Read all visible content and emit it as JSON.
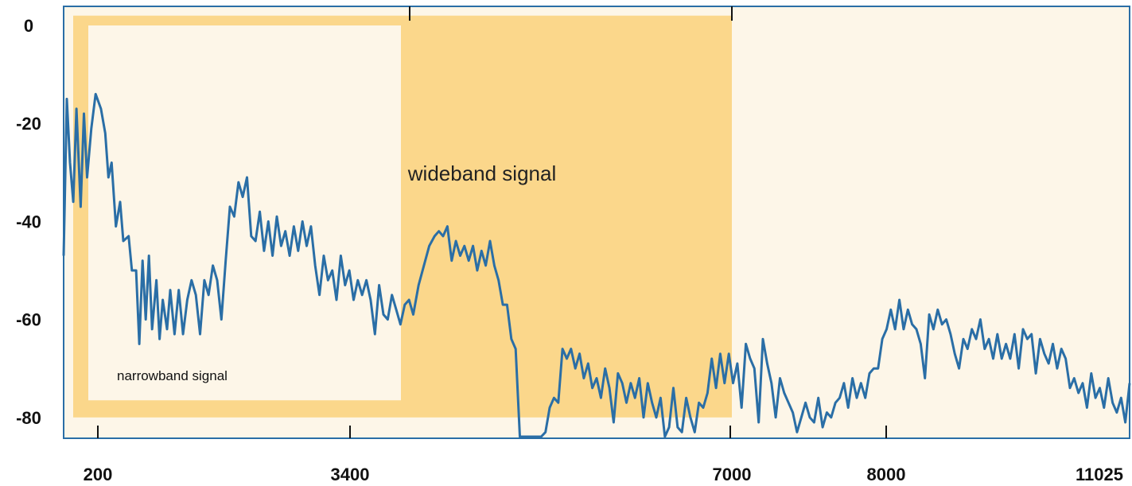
{
  "chart_data": {
    "type": "line",
    "title": "",
    "xlabel": "",
    "ylabel": "",
    "ylim": [
      -84,
      2
    ],
    "x_ticks": [
      "200",
      "3400",
      "7000",
      "8000",
      "11025"
    ],
    "y_ticks": [
      "0",
      "-20",
      "-40",
      "-60",
      "-80"
    ],
    "y_tick_values": [
      0,
      -20,
      -40,
      -60,
      -80
    ],
    "grid": false,
    "legend": "none",
    "colors": {
      "line": "#2a6ea6",
      "plot_background": "#fdf6e8",
      "band_fill": "#fbd78b",
      "axis": "#2a6ea6"
    },
    "bands": [
      {
        "name": "wideband",
        "label": "wideband signal",
        "x_range": [
          "200",
          "7000"
        ],
        "y_range": [
          -80,
          2
        ]
      },
      {
        "name": "narrowband",
        "label": "narrowband signal",
        "x_range": [
          "200",
          "3400"
        ],
        "y_range": [
          -76.5,
          0
        ]
      }
    ],
    "series": [
      {
        "name": "",
        "x_unit": "position along frequency axis, 0 = left edge, 1 = right edge",
        "points": [
          [
            0.0,
            -47
          ],
          [
            0.003,
            -15
          ],
          [
            0.006,
            -28
          ],
          [
            0.009,
            -36
          ],
          [
            0.012,
            -17
          ],
          [
            0.016,
            -37
          ],
          [
            0.019,
            -18
          ],
          [
            0.022,
            -31
          ],
          [
            0.026,
            -21
          ],
          [
            0.03,
            -14
          ],
          [
            0.035,
            -17
          ],
          [
            0.039,
            -22
          ],
          [
            0.042,
            -31
          ],
          [
            0.045,
            -28
          ],
          [
            0.049,
            -41
          ],
          [
            0.053,
            -36
          ],
          [
            0.056,
            -44
          ],
          [
            0.061,
            -43
          ],
          [
            0.064,
            -50
          ],
          [
            0.068,
            -50
          ],
          [
            0.071,
            -65
          ],
          [
            0.074,
            -48
          ],
          [
            0.077,
            -60
          ],
          [
            0.08,
            -47
          ],
          [
            0.083,
            -62
          ],
          [
            0.087,
            -52
          ],
          [
            0.09,
            -64
          ],
          [
            0.093,
            -56
          ],
          [
            0.097,
            -62
          ],
          [
            0.1,
            -54
          ],
          [
            0.104,
            -63
          ],
          [
            0.108,
            -54
          ],
          [
            0.112,
            -63
          ],
          [
            0.116,
            -56
          ],
          [
            0.12,
            -52
          ],
          [
            0.124,
            -55
          ],
          [
            0.128,
            -63
          ],
          [
            0.132,
            -52
          ],
          [
            0.136,
            -55
          ],
          [
            0.14,
            -49
          ],
          [
            0.144,
            -52
          ],
          [
            0.148,
            -60
          ],
          [
            0.152,
            -48
          ],
          [
            0.156,
            -37
          ],
          [
            0.16,
            -39
          ],
          [
            0.164,
            -32
          ],
          [
            0.168,
            -35
          ],
          [
            0.172,
            -31
          ],
          [
            0.176,
            -43
          ],
          [
            0.18,
            -44
          ],
          [
            0.184,
            -38
          ],
          [
            0.188,
            -46
          ],
          [
            0.192,
            -40
          ],
          [
            0.196,
            -47
          ],
          [
            0.2,
            -39
          ],
          [
            0.204,
            -45
          ],
          [
            0.208,
            -42
          ],
          [
            0.212,
            -47
          ],
          [
            0.216,
            -41
          ],
          [
            0.22,
            -46
          ],
          [
            0.224,
            -40
          ],
          [
            0.228,
            -45
          ],
          [
            0.232,
            -41
          ],
          [
            0.236,
            -49
          ],
          [
            0.24,
            -55
          ],
          [
            0.244,
            -47
          ],
          [
            0.248,
            -52
          ],
          [
            0.252,
            -50
          ],
          [
            0.256,
            -56
          ],
          [
            0.26,
            -47
          ],
          [
            0.264,
            -53
          ],
          [
            0.268,
            -50
          ],
          [
            0.272,
            -56
          ],
          [
            0.276,
            -52
          ],
          [
            0.28,
            -55
          ],
          [
            0.284,
            -52
          ],
          [
            0.288,
            -56
          ],
          [
            0.292,
            -63
          ],
          [
            0.296,
            -53
          ],
          [
            0.3,
            -59
          ],
          [
            0.304,
            -60
          ],
          [
            0.308,
            -55
          ],
          [
            0.312,
            -58
          ],
          [
            0.316,
            -61
          ],
          [
            0.32,
            -57
          ],
          [
            0.324,
            -56
          ],
          [
            0.328,
            -59
          ],
          [
            0.333,
            -53
          ],
          [
            0.338,
            -49
          ],
          [
            0.343,
            -45
          ],
          [
            0.348,
            -43
          ],
          [
            0.352,
            -42
          ],
          [
            0.356,
            -43
          ],
          [
            0.36,
            -41
          ],
          [
            0.364,
            -48
          ],
          [
            0.368,
            -44
          ],
          [
            0.372,
            -47
          ],
          [
            0.376,
            -45
          ],
          [
            0.38,
            -48
          ],
          [
            0.384,
            -45
          ],
          [
            0.388,
            -50
          ],
          [
            0.392,
            -46
          ],
          [
            0.396,
            -49
          ],
          [
            0.4,
            -44
          ],
          [
            0.404,
            -49
          ],
          [
            0.408,
            -52
          ],
          [
            0.412,
            -57
          ],
          [
            0.416,
            -57
          ],
          [
            0.42,
            -64
          ],
          [
            0.424,
            -66
          ],
          [
            0.428,
            -85
          ],
          [
            0.432,
            -85
          ],
          [
            0.436,
            -84
          ],
          [
            0.44,
            -84
          ],
          [
            0.444,
            -84
          ],
          [
            0.448,
            -84
          ],
          [
            0.452,
            -83
          ],
          [
            0.456,
            -78
          ],
          [
            0.46,
            -76
          ],
          [
            0.464,
            -77
          ],
          [
            0.468,
            -66
          ],
          [
            0.472,
            -68
          ],
          [
            0.476,
            -66
          ],
          [
            0.48,
            -70
          ],
          [
            0.484,
            -67
          ],
          [
            0.488,
            -72
          ],
          [
            0.492,
            -69
          ],
          [
            0.496,
            -74
          ],
          [
            0.5,
            -72
          ],
          [
            0.504,
            -76
          ],
          [
            0.508,
            -70
          ],
          [
            0.512,
            -74
          ],
          [
            0.516,
            -81
          ],
          [
            0.52,
            -71
          ],
          [
            0.524,
            -73
          ],
          [
            0.528,
            -77
          ],
          [
            0.532,
            -73
          ],
          [
            0.536,
            -76
          ],
          [
            0.54,
            -72
          ],
          [
            0.544,
            -80
          ],
          [
            0.548,
            -73
          ],
          [
            0.552,
            -77
          ],
          [
            0.556,
            -80
          ],
          [
            0.56,
            -76
          ],
          [
            0.564,
            -84
          ],
          [
            0.568,
            -82
          ],
          [
            0.572,
            -74
          ],
          [
            0.576,
            -82
          ],
          [
            0.58,
            -83
          ],
          [
            0.584,
            -76
          ],
          [
            0.588,
            -80
          ],
          [
            0.592,
            -83
          ],
          [
            0.596,
            -77
          ],
          [
            0.6,
            -78
          ],
          [
            0.604,
            -75
          ],
          [
            0.608,
            -68
          ],
          [
            0.612,
            -74
          ],
          [
            0.616,
            -67
          ],
          [
            0.62,
            -73
          ],
          [
            0.624,
            -67
          ],
          [
            0.628,
            -73
          ],
          [
            0.632,
            -69
          ],
          [
            0.636,
            -78
          ],
          [
            0.64,
            -65
          ],
          [
            0.644,
            -68
          ],
          [
            0.648,
            -70
          ],
          [
            0.652,
            -81
          ],
          [
            0.656,
            -64
          ],
          [
            0.66,
            -69
          ],
          [
            0.664,
            -73
          ],
          [
            0.668,
            -80
          ],
          [
            0.672,
            -72
          ],
          [
            0.676,
            -75
          ],
          [
            0.68,
            -77
          ],
          [
            0.684,
            -79
          ],
          [
            0.688,
            -83
          ],
          [
            0.692,
            -80
          ],
          [
            0.696,
            -77
          ],
          [
            0.7,
            -80
          ],
          [
            0.704,
            -81
          ],
          [
            0.708,
            -76
          ],
          [
            0.712,
            -82
          ],
          [
            0.716,
            -79
          ],
          [
            0.72,
            -80
          ],
          [
            0.724,
            -77
          ],
          [
            0.728,
            -76
          ],
          [
            0.732,
            -73
          ],
          [
            0.736,
            -78
          ],
          [
            0.74,
            -72
          ],
          [
            0.744,
            -76
          ],
          [
            0.748,
            -73
          ],
          [
            0.752,
            -76
          ],
          [
            0.756,
            -71
          ],
          [
            0.76,
            -70
          ],
          [
            0.764,
            -70
          ],
          [
            0.768,
            -64
          ],
          [
            0.772,
            -62
          ],
          [
            0.776,
            -58
          ],
          [
            0.78,
            -62
          ],
          [
            0.784,
            -56
          ],
          [
            0.788,
            -62
          ],
          [
            0.792,
            -58
          ],
          [
            0.796,
            -61
          ],
          [
            0.8,
            -62
          ],
          [
            0.804,
            -65
          ],
          [
            0.808,
            -72
          ],
          [
            0.812,
            -59
          ],
          [
            0.816,
            -62
          ],
          [
            0.82,
            -58
          ],
          [
            0.824,
            -61
          ],
          [
            0.828,
            -60
          ],
          [
            0.832,
            -63
          ],
          [
            0.836,
            -67
          ],
          [
            0.84,
            -70
          ],
          [
            0.844,
            -64
          ],
          [
            0.848,
            -66
          ],
          [
            0.852,
            -62
          ],
          [
            0.856,
            -64
          ],
          [
            0.86,
            -60
          ],
          [
            0.864,
            -66
          ],
          [
            0.868,
            -64
          ],
          [
            0.872,
            -68
          ],
          [
            0.876,
            -63
          ],
          [
            0.88,
            -68
          ],
          [
            0.884,
            -65
          ],
          [
            0.888,
            -68
          ],
          [
            0.892,
            -63
          ],
          [
            0.896,
            -70
          ],
          [
            0.9,
            -62
          ],
          [
            0.904,
            -64
          ],
          [
            0.908,
            -63
          ],
          [
            0.912,
            -71
          ],
          [
            0.916,
            -64
          ],
          [
            0.92,
            -67
          ],
          [
            0.924,
            -69
          ],
          [
            0.928,
            -65
          ],
          [
            0.932,
            -70
          ],
          [
            0.936,
            -66
          ],
          [
            0.94,
            -68
          ],
          [
            0.944,
            -74
          ],
          [
            0.948,
            -72
          ],
          [
            0.952,
            -75
          ],
          [
            0.956,
            -73
          ],
          [
            0.96,
            -78
          ],
          [
            0.964,
            -71
          ],
          [
            0.968,
            -76
          ],
          [
            0.972,
            -74
          ],
          [
            0.976,
            -78
          ],
          [
            0.98,
            -72
          ],
          [
            0.984,
            -77
          ],
          [
            0.988,
            -79
          ],
          [
            0.992,
            -76
          ],
          [
            0.996,
            -81
          ],
          [
            1.0,
            -73
          ]
        ]
      }
    ]
  }
}
